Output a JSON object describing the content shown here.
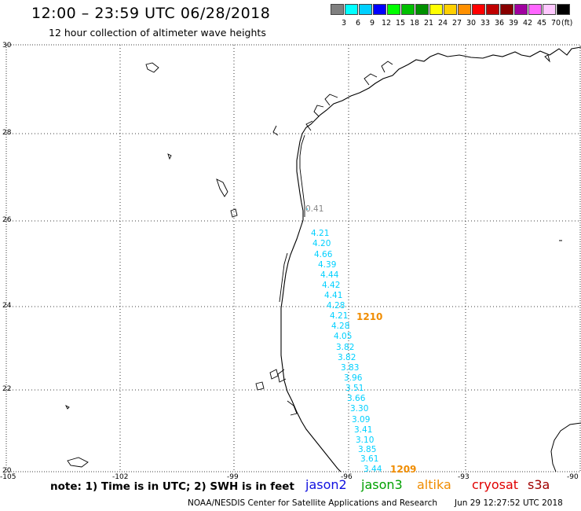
{
  "header": {
    "title": "12:00 – 23:59 UTC 06/28/2018",
    "subtitle": "12 hour collection of altimeter wave heights"
  },
  "color_scale": {
    "colors": [
      "#808080",
      "#00ffff",
      "#00d0ff",
      "#0000ff",
      "#00ff00",
      "#00c000",
      "#009000",
      "#ffff00",
      "#ffd000",
      "#ff9000",
      "#ff0000",
      "#c00000",
      "#880000",
      "#a000a0",
      "#ff66ff",
      "#ffc8ff",
      "#000000"
    ],
    "labels": [
      "3",
      "6",
      "9",
      "12",
      "15",
      "18",
      "21",
      "24",
      "27",
      "30",
      "33",
      "36",
      "39",
      "42",
      "45",
      "70"
    ],
    "unit": "(ft)"
  },
  "axes": {
    "lat_labels": [
      "30",
      "28",
      "26",
      "24",
      "22",
      "20"
    ],
    "lon_labels": [
      "-105",
      "-102",
      "-99",
      "-96",
      "-93",
      "-90"
    ]
  },
  "observations": [
    {
      "value": "0.41",
      "color": "#888888"
    },
    {
      "value": "4.21",
      "color": "#00d0ff"
    },
    {
      "value": "4.20",
      "color": "#00d0ff"
    },
    {
      "value": "4.66",
      "color": "#00d0ff"
    },
    {
      "value": "4.39",
      "color": "#00d0ff"
    },
    {
      "value": "4.44",
      "color": "#00d0ff"
    },
    {
      "value": "4.42",
      "color": "#00d0ff"
    },
    {
      "value": "4.41",
      "color": "#00d0ff"
    },
    {
      "value": "4.28",
      "color": "#00d0ff"
    },
    {
      "value": "4.21",
      "color": "#00d0ff"
    },
    {
      "value": "4.28",
      "color": "#00d0ff"
    },
    {
      "value": "4.05",
      "color": "#00d0ff"
    },
    {
      "value": "3.82",
      "color": "#00d0ff"
    },
    {
      "value": "3.82",
      "color": "#00d0ff"
    },
    {
      "value": "3.83",
      "color": "#00d0ff"
    },
    {
      "value": "3.96",
      "color": "#00d0ff"
    },
    {
      "value": "3.51",
      "color": "#00d0ff"
    },
    {
      "value": "3.66",
      "color": "#00d0ff"
    },
    {
      "value": "3.30",
      "color": "#00d0ff"
    },
    {
      "value": "3.09",
      "color": "#00d0ff"
    },
    {
      "value": "3.41",
      "color": "#00d0ff"
    },
    {
      "value": "3.10",
      "color": "#00d0ff"
    },
    {
      "value": "3.85",
      "color": "#00d0ff"
    },
    {
      "value": "3.61",
      "color": "#00d0ff"
    },
    {
      "value": "3.44",
      "color": "#00d0ff"
    }
  ],
  "track_ids": [
    "1210",
    "1209"
  ],
  "footer": {
    "note": "note: 1) Time is in UTC; 2) SWH is in feet",
    "satellites": [
      {
        "name": "jason2",
        "color": "#1010e0"
      },
      {
        "name": "jason3",
        "color": "#00a000"
      },
      {
        "name": "altika",
        "color": "#f08c00"
      },
      {
        "name": "cryosat",
        "color": "#e00000"
      },
      {
        "name": "s3a",
        "color": "#a00000"
      }
    ],
    "credit": "NOAA/NESDIS Center for Satellite Applications and Research",
    "timestamp": "Jun 29 12:27:52 UTC 2018"
  }
}
